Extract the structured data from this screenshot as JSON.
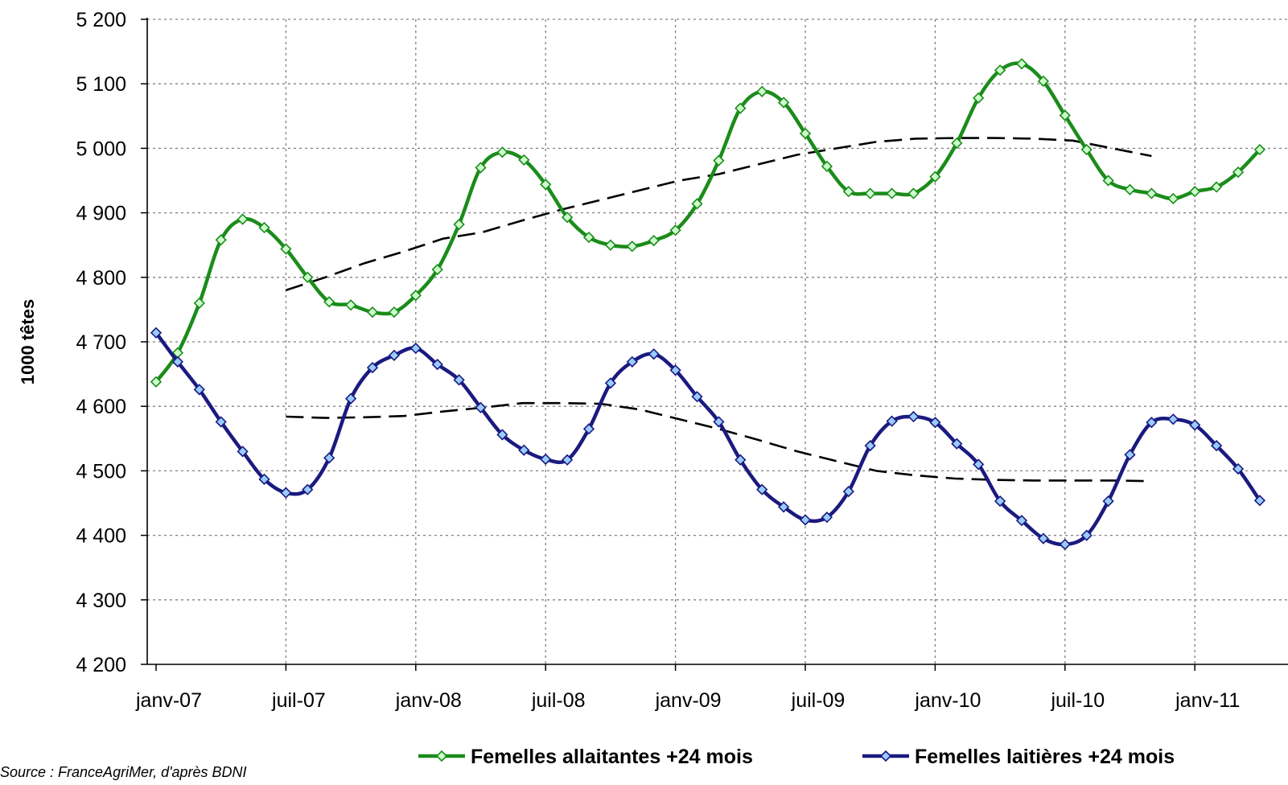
{
  "chart_data": {
    "type": "line",
    "title": "",
    "ylabel": "1000 têtes",
    "xlabel": "",
    "ylim": [
      4200,
      5200
    ],
    "yticks": [
      "4 200",
      "4 300",
      "4 400",
      "4 500",
      "4 600",
      "4 700",
      "4 800",
      "4 900",
      "5 000",
      "5 100",
      "5 200"
    ],
    "ytick_values": [
      4200,
      4300,
      4400,
      4500,
      4600,
      4700,
      4800,
      4900,
      5000,
      5100,
      5200
    ],
    "xticks": [
      "janv-07",
      "juil-07",
      "janv-08",
      "juil-08",
      "janv-09",
      "juil-09",
      "janv-10",
      "juil-10",
      "janv-11"
    ],
    "x_start": "janv-07",
    "x_step": "month",
    "grid": true,
    "legend_position": "bottom",
    "source": "Source : FranceAgriMer, d'après BDNI",
    "series": [
      {
        "name": "Femelles allaitantes +24 mois",
        "color": "#1a8c1a",
        "marker": "diamond",
        "marker_fill": "#ccffcc",
        "values": [
          4638,
          4683,
          4760,
          4858,
          4890,
          4877,
          4844,
          4800,
          4762,
          4757,
          4746,
          4746,
          4772,
          4812,
          4882,
          4970,
          4994,
          4982,
          4944,
          4893,
          4862,
          4850,
          4848,
          4857,
          4873,
          4914,
          4981,
          5062,
          5088,
          5071,
          5023,
          4972,
          4933,
          4930,
          4930,
          4930,
          4956,
          5008,
          5078,
          5121,
          5131,
          5104,
          5051,
          4998,
          4950,
          4936,
          4930,
          4922,
          4933,
          4940,
          4963,
          4998
        ]
      },
      {
        "name": "Femelles laitières +24 mois",
        "color": "#1a1a80",
        "marker": "diamond",
        "marker_fill": "#99ccff",
        "values": [
          4714,
          4669,
          4626,
          4576,
          4530,
          4487,
          4466,
          4471,
          4520,
          4612,
          4660,
          4679,
          4690,
          4665,
          4641,
          4598,
          4556,
          4532,
          4518,
          4517,
          4565,
          4636,
          4669,
          4681,
          4656,
          4615,
          4576,
          4517,
          4471,
          4444,
          4424,
          4428,
          4468,
          4539,
          4577,
          4584,
          4575,
          4542,
          4510,
          4453,
          4423,
          4395,
          4386,
          4400,
          4453,
          4525,
          4575,
          4580,
          4571,
          4539,
          4503,
          4454
        ]
      }
    ],
    "trend_lines": [
      {
        "for_series": "Femelles allaitantes +24 mois",
        "style": "dashed",
        "color": "#000000",
        "start_index": 6,
        "end_index": 46,
        "values": [
          4780,
          4800,
          4822,
          4840,
          4860,
          4870,
          4888,
          4905,
          4920,
          4935,
          4950,
          4960,
          4975,
          4990,
          5000,
          5010,
          5015,
          5016,
          5016,
          5015,
          5012,
          5000,
          4988
        ]
      },
      {
        "for_series": "Femelles laitières +24 mois",
        "style": "dashed",
        "color": "#000000",
        "start_index": 6,
        "end_index": 46,
        "values": [
          4584,
          4582,
          4583,
          4585,
          4592,
          4598,
          4605,
          4605,
          4604,
          4595,
          4580,
          4565,
          4548,
          4530,
          4515,
          4500,
          4493,
          4488,
          4486,
          4485,
          4485,
          4485,
          4484
        ]
      }
    ]
  }
}
